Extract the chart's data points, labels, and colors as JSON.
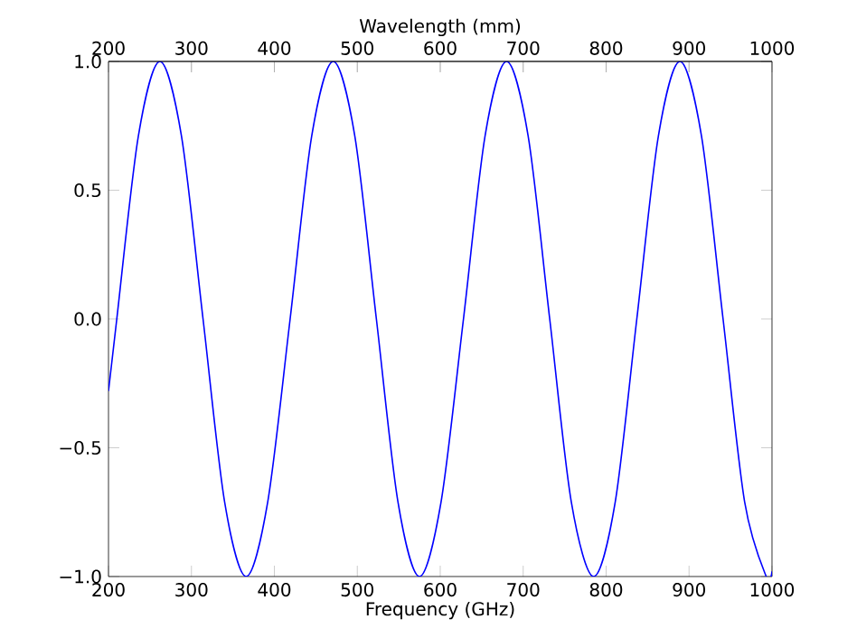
{
  "chart_data": {
    "type": "line",
    "xlabel": "Frequency (GHz)",
    "x2label": "Wavelength (mm)",
    "xlim": [
      200,
      1000
    ],
    "xticks": [
      200,
      300,
      400,
      500,
      600,
      700,
      800,
      900,
      1000
    ],
    "x2lim": [
      200,
      1000
    ],
    "x2ticks": [
      200,
      300,
      400,
      500,
      600,
      700,
      800,
      900,
      1000
    ],
    "ylim": [
      -1,
      1
    ],
    "yticks": [
      {
        "value": -1,
        "label": "−1.0"
      },
      {
        "value": -0.5,
        "label": "−0.5"
      },
      {
        "value": 0,
        "label": "0.0"
      },
      {
        "value": 0.5,
        "label": "0.5"
      },
      {
        "value": 1,
        "label": "1.0"
      }
    ],
    "grid": false,
    "series": [
      {
        "color": "#0000ff",
        "line_style": "solid",
        "x": [
          200,
          210,
          236,
          262,
          288,
          314,
          340,
          366,
          392,
          419,
          445,
          471,
          497,
          523,
          549,
          575,
          601,
          628,
          654,
          680,
          706,
          732,
          758,
          785,
          811,
          837,
          863,
          889,
          915,
          941,
          967,
          993,
          1000
        ],
        "values": [
          -0.28,
          0,
          0.71,
          1,
          0.71,
          0,
          -0.71,
          -1,
          -0.71,
          0,
          0.71,
          1,
          0.71,
          0,
          -0.71,
          -1,
          -0.71,
          0,
          0.71,
          1,
          0.71,
          0,
          -0.71,
          -1,
          -0.71,
          0,
          0.71,
          1,
          0.71,
          0,
          -0.71,
          -1,
          -0.98
        ]
      }
    ]
  }
}
